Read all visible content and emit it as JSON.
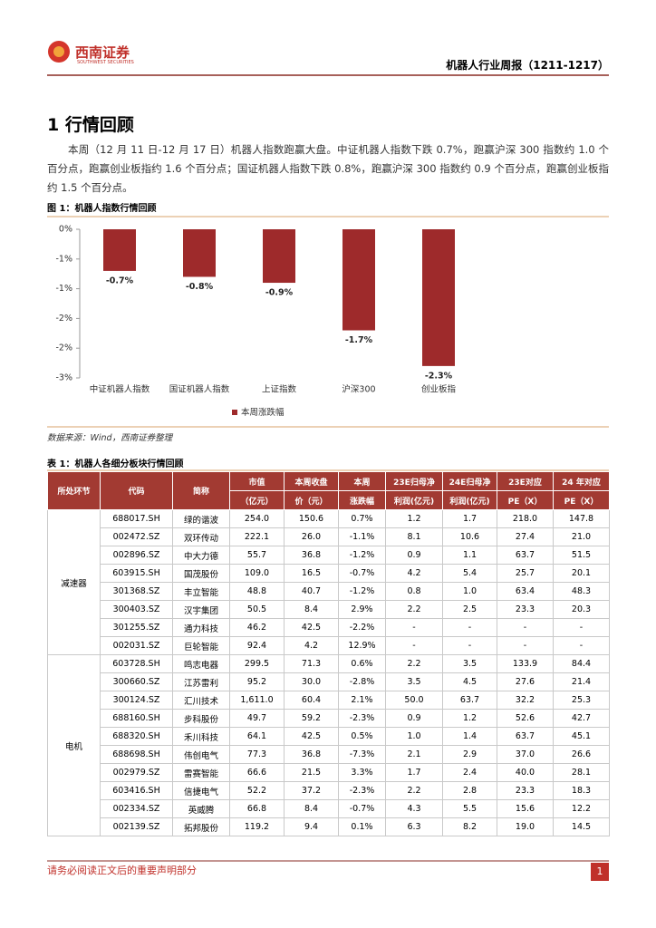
{
  "header": {
    "logo_name": "西南证券",
    "logo_sub": "SOUTHWEST SECURITIES",
    "report_title": "机器人行业周报（1211-1217）"
  },
  "section": {
    "heading": "1 行情回顾",
    "paragraph": "本周（12 月 11 日-12 月 17 日）机器人指数跑赢大盘。中证机器人指数下跌 0.7%，跑赢沪深 300 指数约 1.0 个百分点，跑赢创业板指约 1.6 个百分点；国证机器人指数下跌 0.8%，跑赢沪深 300 指数约 0.9 个百分点，跑赢创业板指约 1.5 个百分点。"
  },
  "figure": {
    "caption": "图 1：机器人指数行情回顾",
    "source": "数据来源：Wind，西南证券整理"
  },
  "chart_data": {
    "type": "bar",
    "categories": [
      "中证机器人指数",
      "国证机器人指数",
      "上证指数",
      "沪深300",
      "创业板指"
    ],
    "series": [
      {
        "name": "本周涨跌幅",
        "color": "#9e2a2b",
        "values": [
          -0.7,
          -0.8,
          -0.9,
          -1.7,
          -2.3
        ],
        "value_labels": [
          "-0.7%",
          "-0.8%",
          "-0.9%",
          "-1.7%",
          "-2.3%"
        ]
      }
    ],
    "ylim": [
      0,
      -2.5
    ],
    "yticks": [
      {
        "value": 0,
        "label": "0%"
      },
      {
        "value": -0.5,
        "label": "-1%"
      },
      {
        "value": -1,
        "label": "-1%"
      },
      {
        "value": -1.5,
        "label": "-2%"
      },
      {
        "value": -2,
        "label": "-2%"
      },
      {
        "value": -2.5,
        "label": "-3%"
      }
    ],
    "legend": "bottom"
  },
  "table": {
    "caption": "表 1：机器人各细分板块行情回顾",
    "header": [
      [
        "所处环节"
      ],
      [
        "代码"
      ],
      [
        "简称"
      ],
      [
        "市值",
        "（亿元）"
      ],
      [
        "本周收盘",
        "价（元）"
      ],
      [
        "本周",
        "涨跌幅"
      ],
      [
        "23E归母净",
        "利润(亿元)"
      ],
      [
        "24E归母净",
        "利润(亿元)"
      ],
      [
        "23E对应",
        "PE（X）"
      ],
      [
        "24 年对应",
        "PE（X）"
      ]
    ],
    "groups": [
      {
        "name": "减速器",
        "rows": [
          [
            "688017.SH",
            "绿的谐波",
            "254.0",
            "150.6",
            "0.7%",
            "1.2",
            "1.7",
            "218.0",
            "147.8"
          ],
          [
            "002472.SZ",
            "双环传动",
            "222.1",
            "26.0",
            "-1.1%",
            "8.1",
            "10.6",
            "27.4",
            "21.0"
          ],
          [
            "002896.SZ",
            "中大力德",
            "55.7",
            "36.8",
            "-1.2%",
            "0.9",
            "1.1",
            "63.7",
            "51.5"
          ],
          [
            "603915.SH",
            "国茂股份",
            "109.0",
            "16.5",
            "-0.7%",
            "4.2",
            "5.4",
            "25.7",
            "20.1"
          ],
          [
            "301368.SZ",
            "丰立智能",
            "48.8",
            "40.7",
            "-1.2%",
            "0.8",
            "1.0",
            "63.4",
            "48.3"
          ],
          [
            "300403.SZ",
            "汉宇集团",
            "50.5",
            "8.4",
            "2.9%",
            "2.2",
            "2.5",
            "23.3",
            "20.3"
          ],
          [
            "301255.SZ",
            "通力科技",
            "46.2",
            "42.5",
            "-2.2%",
            "-",
            "-",
            "-",
            "-"
          ],
          [
            "002031.SZ",
            "巨轮智能",
            "92.4",
            "4.2",
            "12.9%",
            "-",
            "-",
            "-",
            "-"
          ]
        ]
      },
      {
        "name": "电机",
        "rows": [
          [
            "603728.SH",
            "鸣志电器",
            "299.5",
            "71.3",
            "0.6%",
            "2.2",
            "3.5",
            "133.9",
            "84.4"
          ],
          [
            "300660.SZ",
            "江苏雷利",
            "95.2",
            "30.0",
            "-2.8%",
            "3.5",
            "4.5",
            "27.6",
            "21.4"
          ],
          [
            "300124.SZ",
            "汇川技术",
            "1,611.0",
            "60.4",
            "2.1%",
            "50.0",
            "63.7",
            "32.2",
            "25.3"
          ],
          [
            "688160.SH",
            "步科股份",
            "49.7",
            "59.2",
            "-2.3%",
            "0.9",
            "1.2",
            "52.6",
            "42.7"
          ],
          [
            "688320.SH",
            "禾川科技",
            "64.1",
            "42.5",
            "0.5%",
            "1.0",
            "1.4",
            "63.7",
            "45.1"
          ],
          [
            "688698.SH",
            "伟创电气",
            "77.3",
            "36.8",
            "-7.3%",
            "2.1",
            "2.9",
            "37.0",
            "26.6"
          ],
          [
            "002979.SZ",
            "雷赛智能",
            "66.6",
            "21.5",
            "3.3%",
            "1.7",
            "2.4",
            "40.0",
            "28.1"
          ],
          [
            "603416.SH",
            "信捷电气",
            "52.2",
            "37.2",
            "-2.3%",
            "2.2",
            "2.8",
            "23.3",
            "18.3"
          ],
          [
            "002334.SZ",
            "英威腾",
            "66.8",
            "8.4",
            "-0.7%",
            "4.3",
            "5.5",
            "15.6",
            "12.2"
          ],
          [
            "002139.SZ",
            "拓邦股份",
            "119.2",
            "9.4",
            "0.1%",
            "6.3",
            "8.2",
            "19.0",
            "14.5"
          ]
        ]
      }
    ]
  },
  "footer": {
    "notice": "请务必阅读正文后的重要声明部分",
    "page": "1"
  }
}
